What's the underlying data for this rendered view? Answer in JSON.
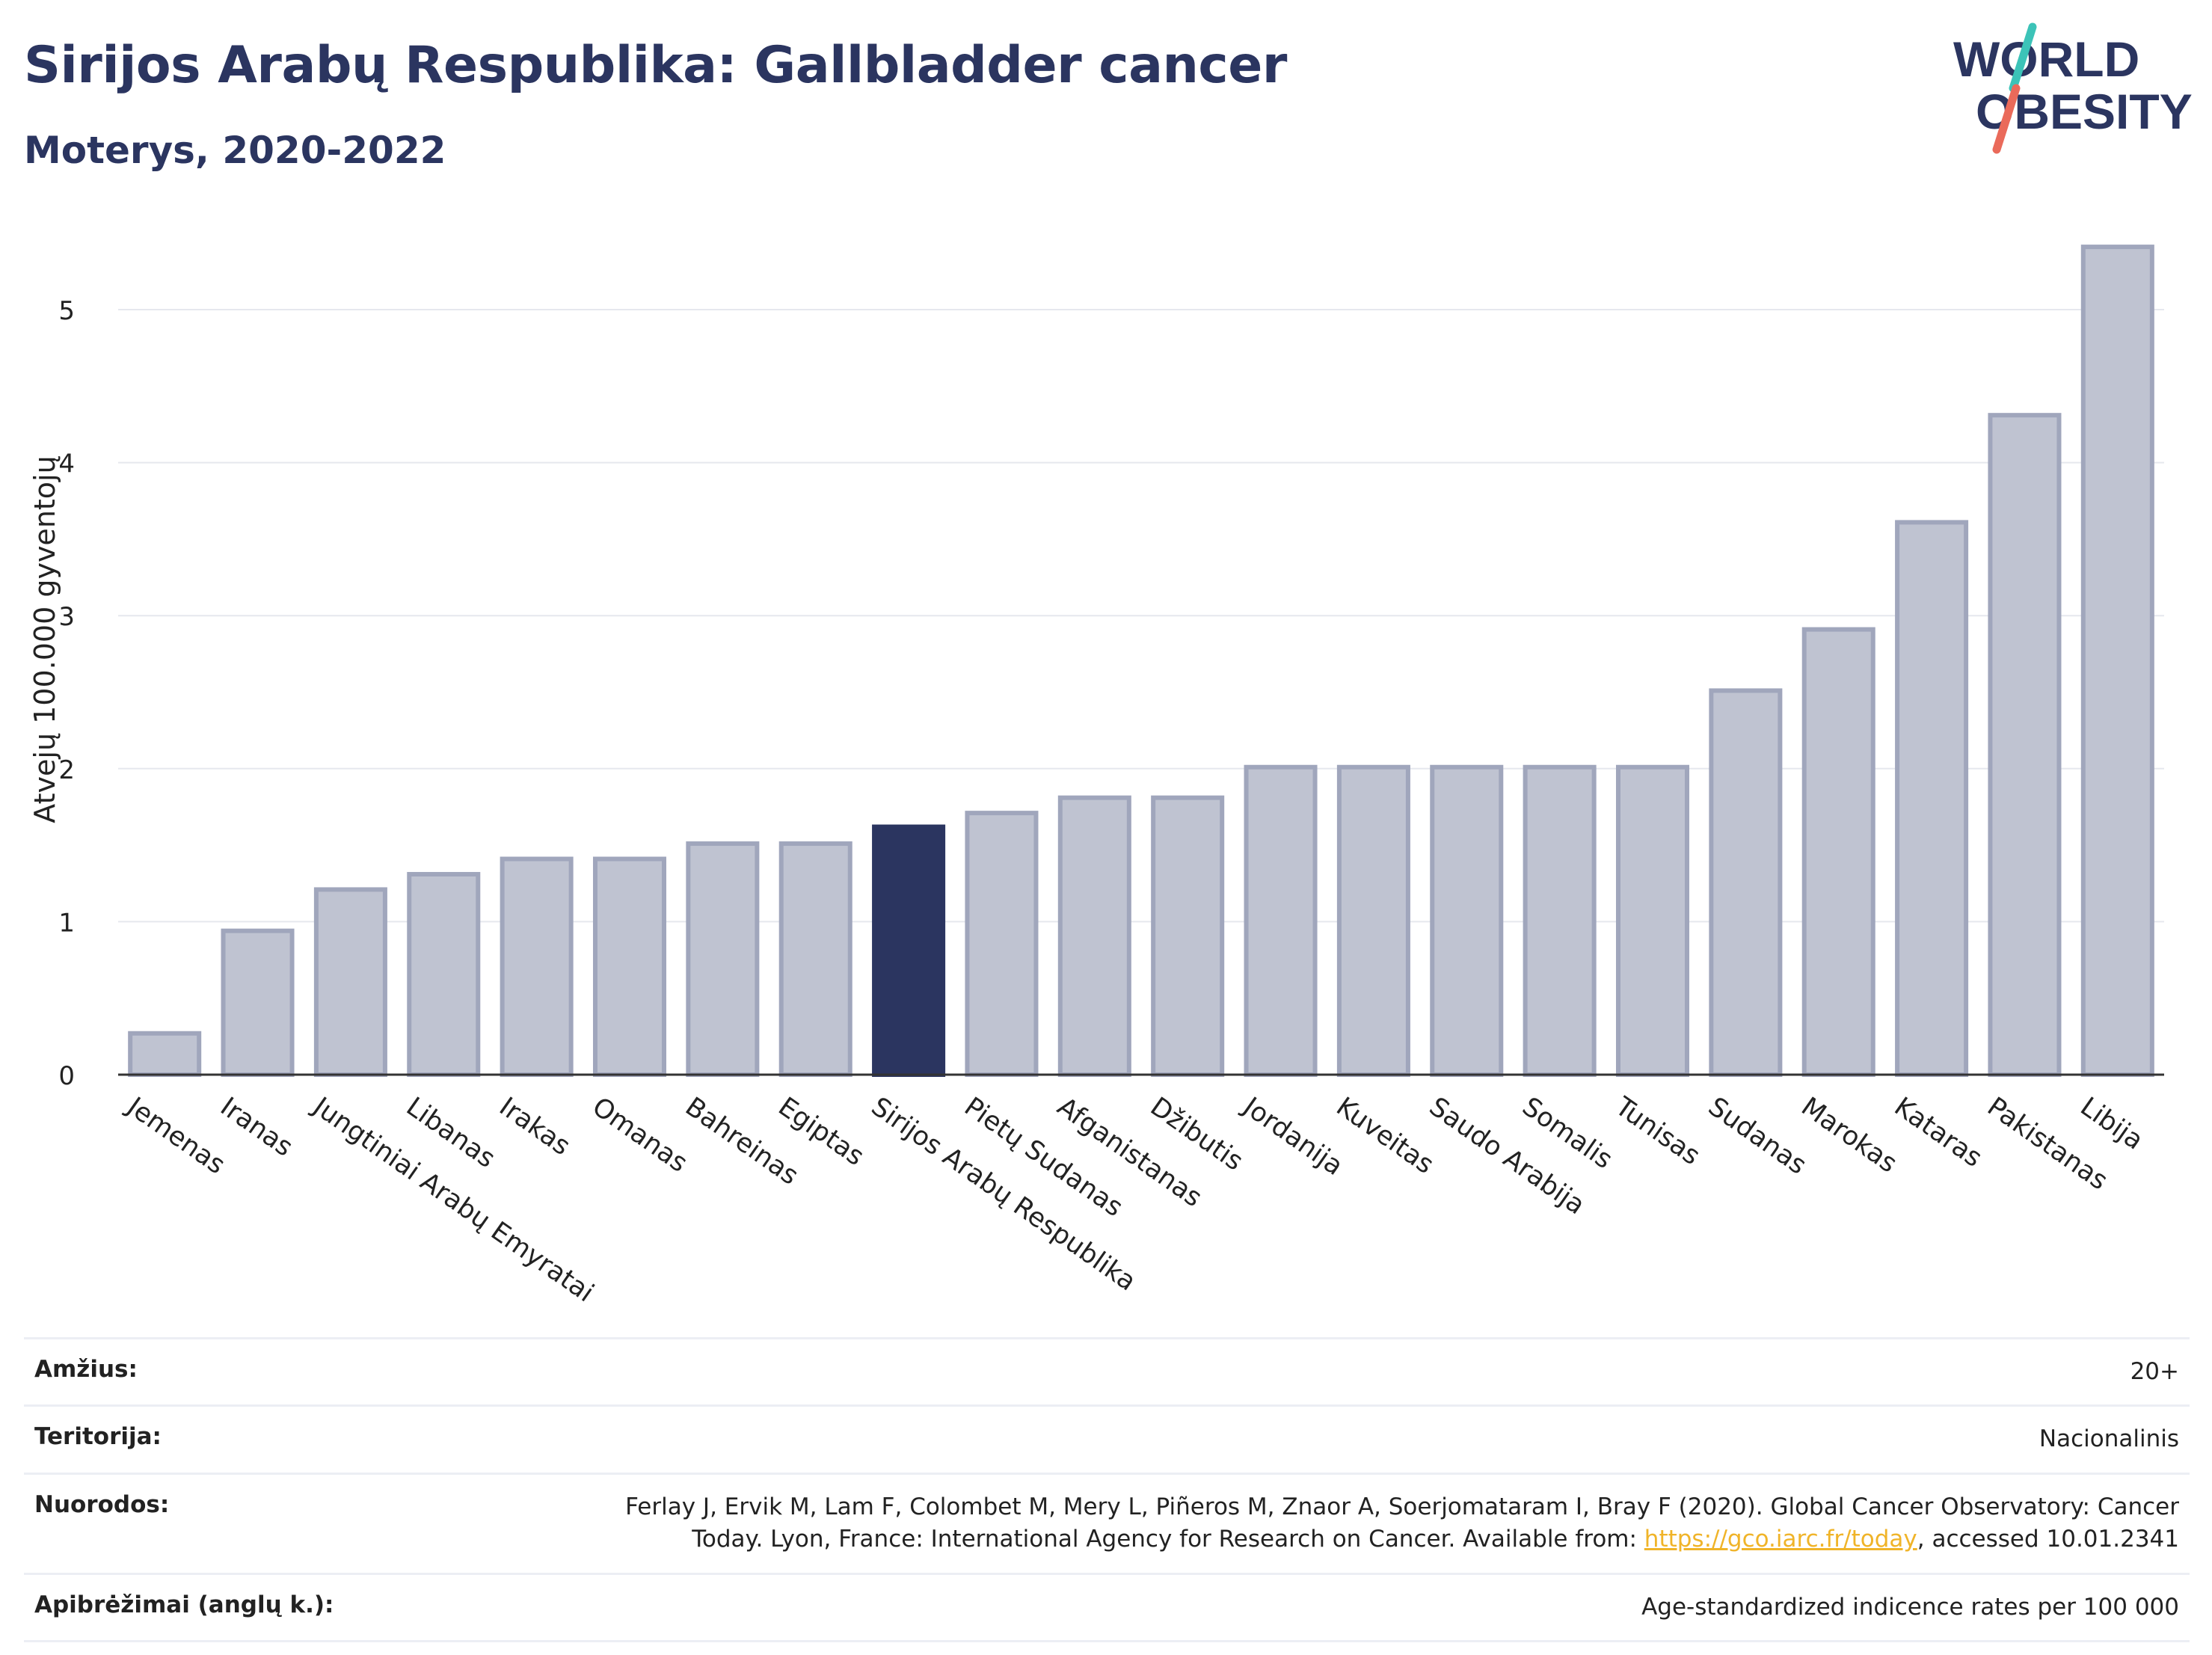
{
  "header": {
    "title": "Sirijos Arabų Respublika: Gallbladder cancer",
    "subtitle": "Moterys, 2020-2022"
  },
  "logo": {
    "line1": "WORLD",
    "line2": "OBESITY"
  },
  "colors": {
    "highlight": "#2b3560",
    "bar_fill": "#bfc3d1",
    "bar_stroke": "#a0a6bc",
    "grid": "#e6e8ee",
    "logo_teal": "#3cc3b8",
    "logo_coral": "#ea6a5a",
    "link": "#f0b429"
  },
  "chart_data": {
    "type": "bar",
    "ylabel": "Atvejų 100.000 gyventojų",
    "ylim": [
      0,
      5.5
    ],
    "yticks": [
      0,
      1,
      2,
      3,
      4,
      5
    ],
    "grid": true,
    "highlight": "Sirijos Arabų Respublika",
    "categories": [
      "Jemenas",
      "Iranas",
      "Jungtiniai Arabų Emyratai",
      "Libanas",
      "Irakas",
      "Omanas",
      "Bahreinas",
      "Egiptas",
      "Sirijos Arabų Respublika",
      "Pietų Sudanas",
      "Afganistanas",
      "Džibutis",
      "Jordanija",
      "Kuveitas",
      "Saudo Arabija",
      "Somalis",
      "Tunisas",
      "Sudanas",
      "Marokas",
      "Kataras",
      "Pakistanas",
      "Libija"
    ],
    "values": [
      0.27,
      0.94,
      1.21,
      1.31,
      1.41,
      1.41,
      1.51,
      1.51,
      1.62,
      1.71,
      1.81,
      1.81,
      2.01,
      2.01,
      2.01,
      2.01,
      2.01,
      2.51,
      2.91,
      3.61,
      4.31,
      5.41
    ]
  },
  "info": {
    "age_label": "Amžius:",
    "age_value": "20+",
    "territory_label": "Teritorija:",
    "territory_value": "Nacionalinis",
    "refs_label": "Nuorodos:",
    "refs_line1": "Ferlay J, Ervik M, Lam F, Colombet M, Mery L, Piñeros M, Znaor A, Soerjomataram I, Bray F (2020). Global Cancer Observatory: Cancer",
    "refs_line2_pre": "Today. Lyon, France: International Agency for Research on Cancer. Available from: ",
    "refs_link": "https://gco.iarc.fr/today",
    "refs_line2_post": ", accessed 10.01.2341",
    "definitions_label": "Apibrėžimai (anglų k.):",
    "definitions_value": "Age-standardized indicence rates per 100 000"
  }
}
